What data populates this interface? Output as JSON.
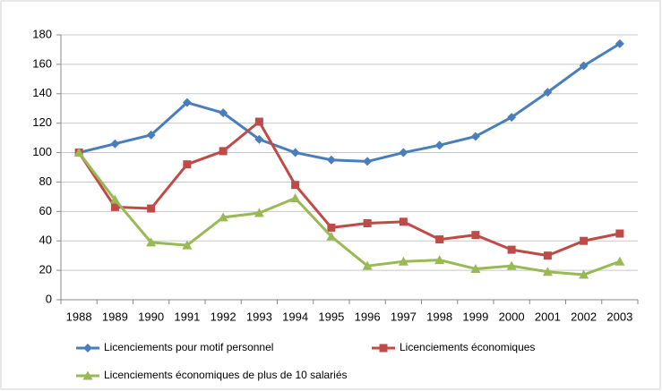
{
  "chart_data": {
    "type": "line",
    "categories": [
      "1988",
      "1989",
      "1990",
      "1991",
      "1992",
      "1993",
      "1994",
      "1995",
      "1996",
      "1997",
      "1998",
      "1999",
      "2000",
      "2001",
      "2002",
      "2003"
    ],
    "series": [
      {
        "name": "Licenciements pour  motif personnel",
        "color": "#4a7ebb",
        "marker": "diamond",
        "values": [
          100,
          106,
          112,
          134,
          127,
          109,
          100,
          95,
          94,
          100,
          105,
          111,
          124,
          141,
          159,
          174
        ]
      },
      {
        "name": "Licenciements économiques",
        "color": "#be4b48",
        "marker": "square",
        "values": [
          100,
          63,
          62,
          92,
          101,
          121,
          78,
          49,
          52,
          53,
          41,
          44,
          34,
          30,
          40,
          45
        ]
      },
      {
        "name": "Licenciements économiques  de plus de 10 salariés",
        "color": "#98b954",
        "marker": "triangle",
        "values": [
          100,
          68,
          39,
          37,
          56,
          59,
          69,
          43,
          23,
          26,
          27,
          21,
          23,
          19,
          17,
          26
        ]
      }
    ],
    "ylim": [
      0,
      180
    ],
    "yticks": [
      0,
      20,
      40,
      60,
      80,
      100,
      120,
      140,
      160,
      180
    ],
    "grid": true,
    "legend": "bottom"
  }
}
